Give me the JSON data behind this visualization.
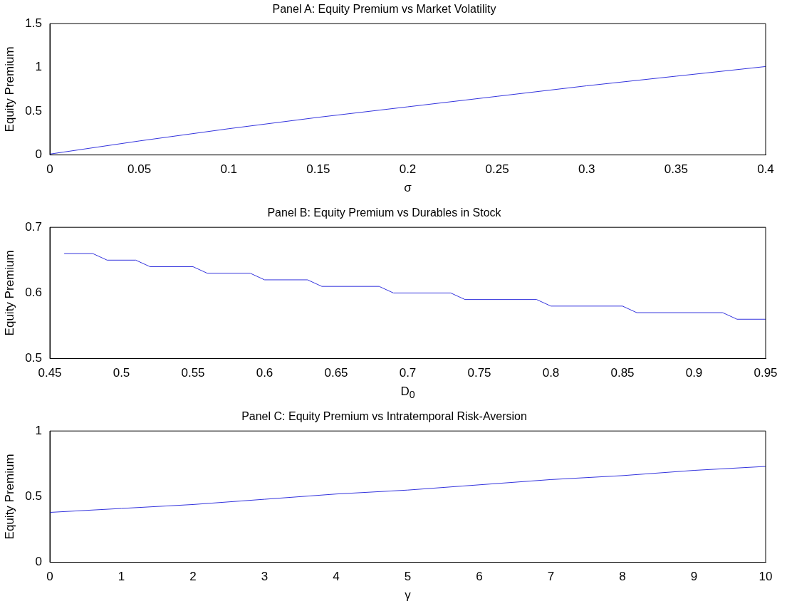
{
  "chart_data": [
    {
      "type": "line",
      "title": "Panel A: Equity Premium vs Market Volatility",
      "xlabel": "σ",
      "ylabel": "Equity Premium",
      "xlim": [
        0,
        0.4
      ],
      "xticks": [
        0,
        0.05,
        0.1,
        0.15,
        0.2,
        0.25,
        0.3,
        0.35,
        0.4
      ],
      "ylim": [
        0,
        1.5
      ],
      "yticks": [
        0,
        0.5,
        1,
        1.5
      ],
      "x": [
        0,
        0.05,
        0.1,
        0.15,
        0.2,
        0.25,
        0.3,
        0.35,
        0.4
      ],
      "series": [
        {
          "color": "#3333dd",
          "values": [
            0.01,
            0.16,
            0.3,
            0.43,
            0.55,
            0.67,
            0.79,
            0.9,
            1.01
          ]
        }
      ]
    },
    {
      "type": "line",
      "title": "Panel B: Equity Premium vs Durables in Stock",
      "xlabel": "D$_{0}$",
      "ylabel": "Equity Premium",
      "xlim": [
        0.45,
        0.95
      ],
      "xticks": [
        0.45,
        0.5,
        0.55,
        0.6,
        0.65,
        0.7,
        0.75,
        0.8,
        0.85,
        0.9,
        0.95
      ],
      "ylim": [
        0.5,
        0.7
      ],
      "yticks": [
        0.5,
        0.6,
        0.7
      ],
      "x": [
        0.46,
        0.48,
        0.49,
        0.51,
        0.52,
        0.55,
        0.56,
        0.59,
        0.6,
        0.63,
        0.64,
        0.68,
        0.69,
        0.73,
        0.74,
        0.79,
        0.8,
        0.85,
        0.86,
        0.92,
        0.93,
        0.95
      ],
      "series": [
        {
          "color": "#3333dd",
          "values": [
            0.66,
            0.66,
            0.65,
            0.65,
            0.64,
            0.64,
            0.63,
            0.63,
            0.62,
            0.62,
            0.61,
            0.61,
            0.6,
            0.6,
            0.59,
            0.59,
            0.58,
            0.58,
            0.57,
            0.57,
            0.56,
            0.56
          ]
        }
      ]
    },
    {
      "type": "line",
      "title": "Panel C: Equity Premium vs Intratemporal Risk-Aversion",
      "xlabel": "γ",
      "ylabel": "Equity Premium",
      "xlim": [
        0,
        10
      ],
      "xticks": [
        0,
        1,
        2,
        3,
        4,
        5,
        6,
        7,
        8,
        9,
        10
      ],
      "ylim": [
        0,
        1
      ],
      "yticks": [
        0,
        0.5,
        1
      ],
      "x": [
        0,
        1,
        2,
        3,
        4,
        5,
        6,
        7,
        8,
        9,
        10
      ],
      "series": [
        {
          "color": "#3333dd",
          "values": [
            0.38,
            0.41,
            0.44,
            0.48,
            0.52,
            0.55,
            0.59,
            0.63,
            0.66,
            0.7,
            0.73
          ]
        }
      ]
    }
  ]
}
